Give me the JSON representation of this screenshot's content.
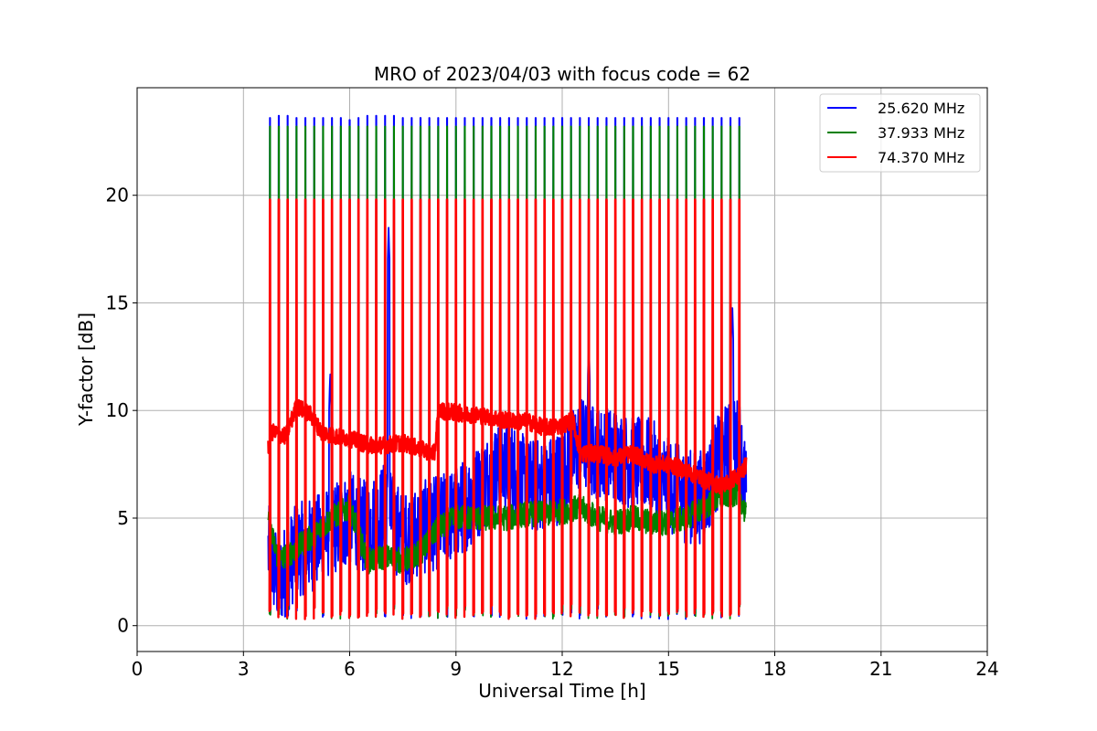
{
  "chart_data": {
    "type": "line",
    "title": "MRO of 2023/04/03 with focus code = 62",
    "xlabel": "Universal Time [h]",
    "ylabel": "Y-factor [dB]",
    "xlim": [
      0,
      24
    ],
    "ylim": [
      -1.2,
      25
    ],
    "xticks": [
      0,
      3,
      6,
      9,
      12,
      15,
      18,
      21,
      24
    ],
    "yticks": [
      0,
      5,
      10,
      15,
      20
    ],
    "grid": true,
    "legend_position": "top-right",
    "time_range": [
      3.7,
      17.2
    ],
    "calibration_peaks": [
      {
        "x": 3.75,
        "value": 23.6
      },
      {
        "x": 4.0,
        "value": 23.7
      },
      {
        "x": 4.25,
        "value": 23.7
      },
      {
        "x": 4.5,
        "value": 23.6
      },
      {
        "x": 4.75,
        "value": 23.6
      },
      {
        "x": 5.0,
        "value": 23.6
      },
      {
        "x": 5.25,
        "value": 23.6
      },
      {
        "x": 5.5,
        "value": 23.6
      },
      {
        "x": 5.75,
        "value": 23.6
      },
      {
        "x": 6.0,
        "value": 23.5
      },
      {
        "x": 6.25,
        "value": 23.6
      },
      {
        "x": 6.5,
        "value": 23.7
      },
      {
        "x": 6.75,
        "value": 23.7
      },
      {
        "x": 7.0,
        "value": 23.7
      },
      {
        "x": 7.25,
        "value": 23.7
      },
      {
        "x": 7.5,
        "value": 23.6
      },
      {
        "x": 7.75,
        "value": 23.6
      },
      {
        "x": 8.0,
        "value": 23.6
      },
      {
        "x": 8.25,
        "value": 23.6
      },
      {
        "x": 8.5,
        "value": 23.6
      },
      {
        "x": 8.75,
        "value": 23.6
      },
      {
        "x": 9.0,
        "value": 23.6
      },
      {
        "x": 9.25,
        "value": 23.6
      },
      {
        "x": 9.5,
        "value": 23.6
      },
      {
        "x": 9.75,
        "value": 23.6
      },
      {
        "x": 10.0,
        "value": 23.6
      },
      {
        "x": 10.25,
        "value": 23.6
      },
      {
        "x": 10.5,
        "value": 23.6
      },
      {
        "x": 10.75,
        "value": 23.6
      },
      {
        "x": 11.0,
        "value": 23.6
      },
      {
        "x": 11.25,
        "value": 23.6
      },
      {
        "x": 11.5,
        "value": 23.6
      },
      {
        "x": 11.75,
        "value": 23.6
      },
      {
        "x": 12.0,
        "value": 23.6
      },
      {
        "x": 12.25,
        "value": 23.6
      },
      {
        "x": 12.5,
        "value": 23.6
      },
      {
        "x": 12.75,
        "value": 23.6
      },
      {
        "x": 13.0,
        "value": 23.6
      },
      {
        "x": 13.25,
        "value": 23.6
      },
      {
        "x": 13.5,
        "value": 23.6
      },
      {
        "x": 13.75,
        "value": 23.6
      },
      {
        "x": 14.0,
        "value": 23.6
      },
      {
        "x": 14.25,
        "value": 23.6
      },
      {
        "x": 14.5,
        "value": 23.6
      },
      {
        "x": 14.75,
        "value": 23.6
      },
      {
        "x": 15.0,
        "value": 23.6
      },
      {
        "x": 15.25,
        "value": 23.6
      },
      {
        "x": 15.5,
        "value": 23.6
      },
      {
        "x": 15.75,
        "value": 23.6
      },
      {
        "x": 16.0,
        "value": 23.6
      },
      {
        "x": 16.25,
        "value": 23.6
      },
      {
        "x": 16.5,
        "value": 23.6
      },
      {
        "x": 16.75,
        "value": 23.6
      },
      {
        "x": 17.0,
        "value": 23.6
      }
    ],
    "series": [
      {
        "name": "25.620 MHz",
        "color": "#0000ff",
        "peak_value": 23.6,
        "baseline": [
          [
            3.7,
            3.5
          ],
          [
            4.0,
            2.0
          ],
          [
            4.5,
            3.5
          ],
          [
            5.0,
            3.8
          ],
          [
            5.5,
            4.5
          ],
          [
            6.0,
            5.0
          ],
          [
            6.5,
            4.5
          ],
          [
            7.0,
            5.5
          ],
          [
            7.5,
            4.0
          ],
          [
            8.0,
            4.5
          ],
          [
            8.5,
            4.8
          ],
          [
            9.0,
            5.2
          ],
          [
            9.5,
            6.0
          ],
          [
            10.0,
            7.0
          ],
          [
            10.5,
            7.5
          ],
          [
            11.0,
            6.5
          ],
          [
            11.5,
            6.5
          ],
          [
            12.0,
            7.0
          ],
          [
            12.5,
            8.5
          ],
          [
            13.0,
            8.0
          ],
          [
            13.5,
            8.0
          ],
          [
            14.0,
            7.5
          ],
          [
            14.5,
            7.5
          ],
          [
            15.0,
            6.5
          ],
          [
            15.5,
            6.0
          ],
          [
            16.0,
            6.0
          ],
          [
            16.5,
            8.0
          ],
          [
            17.0,
            8.5
          ],
          [
            17.2,
            6.0
          ]
        ],
        "noise": 2.2,
        "spikes": [
          {
            "x": 7.1,
            "value": 18.5
          },
          {
            "x": 16.8,
            "value": 15.0
          },
          {
            "x": 12.75,
            "value": 13.2
          },
          {
            "x": 5.45,
            "value": 11.8
          }
        ]
      },
      {
        "name": "37.933 MHz",
        "color": "#008000",
        "peak_value": 23.2,
        "baseline": [
          [
            3.7,
            4.8
          ],
          [
            4.0,
            3.0
          ],
          [
            4.5,
            3.6
          ],
          [
            5.0,
            4.2
          ],
          [
            5.5,
            5.0
          ],
          [
            6.0,
            5.5
          ],
          [
            6.5,
            3.0
          ],
          [
            7.0,
            3.2
          ],
          [
            7.5,
            3.0
          ],
          [
            8.0,
            3.4
          ],
          [
            8.5,
            4.5
          ],
          [
            9.0,
            5.0
          ],
          [
            9.5,
            5.0
          ],
          [
            10.0,
            5.0
          ],
          [
            10.5,
            5.0
          ],
          [
            11.0,
            5.2
          ],
          [
            11.5,
            5.2
          ],
          [
            12.0,
            5.3
          ],
          [
            12.5,
            5.5
          ],
          [
            13.0,
            5.0
          ],
          [
            13.5,
            4.8
          ],
          [
            14.0,
            5.0
          ],
          [
            14.5,
            4.8
          ],
          [
            15.0,
            4.8
          ],
          [
            15.5,
            5.0
          ],
          [
            16.0,
            5.5
          ],
          [
            16.5,
            6.0
          ],
          [
            17.0,
            6.2
          ],
          [
            17.2,
            5.0
          ]
        ],
        "noise": 0.6,
        "spikes": []
      },
      {
        "name": "74.370 MHz",
        "color": "#ff0000",
        "peak_value": 19.8,
        "baseline": [
          [
            3.7,
            8.2
          ],
          [
            3.8,
            9.0
          ],
          [
            4.2,
            8.8
          ],
          [
            4.5,
            10.2
          ],
          [
            4.9,
            9.8
          ],
          [
            5.2,
            9.0
          ],
          [
            5.6,
            8.8
          ],
          [
            6.0,
            8.7
          ],
          [
            6.5,
            8.4
          ],
          [
            7.0,
            8.4
          ],
          [
            7.5,
            8.5
          ],
          [
            8.0,
            8.2
          ],
          [
            8.4,
            8.0
          ],
          [
            8.5,
            10.0
          ],
          [
            9.0,
            9.9
          ],
          [
            9.5,
            9.8
          ],
          [
            10.0,
            9.7
          ],
          [
            10.5,
            9.5
          ],
          [
            11.0,
            9.5
          ],
          [
            11.5,
            9.2
          ],
          [
            12.0,
            9.3
          ],
          [
            12.3,
            9.6
          ],
          [
            12.5,
            8.0
          ],
          [
            13.0,
            8.0
          ],
          [
            13.5,
            7.8
          ],
          [
            14.0,
            8.0
          ],
          [
            14.5,
            7.5
          ],
          [
            15.0,
            7.5
          ],
          [
            15.5,
            7.2
          ],
          [
            16.0,
            6.8
          ],
          [
            16.5,
            6.5
          ],
          [
            17.0,
            7.0
          ],
          [
            17.2,
            7.5
          ]
        ],
        "noise": 0.4,
        "spikes": []
      }
    ]
  }
}
